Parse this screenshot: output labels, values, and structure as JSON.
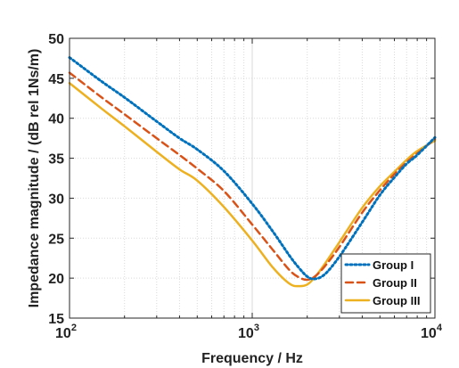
{
  "chart_data": {
    "type": "line",
    "xlabel": "Frequency / Hz",
    "ylabel": "Impedance magnitude / (dB rel 1Ns/m)",
    "xscale": "log",
    "xlim": [
      100,
      10000
    ],
    "ylim": [
      15,
      50
    ],
    "grid": true,
    "legend_position": "bottom-right",
    "x_ticks": [
      {
        "value": 100,
        "base": "10",
        "exp": "2"
      },
      {
        "value": 1000,
        "base": "10",
        "exp": "3"
      },
      {
        "value": 10000,
        "base": "10",
        "exp": "4"
      }
    ],
    "y_ticks": [
      {
        "value": 15,
        "label": "15"
      },
      {
        "value": 20,
        "label": "20"
      },
      {
        "value": 25,
        "label": "25"
      },
      {
        "value": 30,
        "label": "30"
      },
      {
        "value": 35,
        "label": "35"
      },
      {
        "value": 40,
        "label": "40"
      },
      {
        "value": 45,
        "label": "45"
      },
      {
        "value": 50,
        "label": "50"
      }
    ],
    "x": [
      100,
      150,
      200,
      300,
      400,
      500,
      700,
      1000,
      1300,
      1600,
      1800,
      2000,
      2200,
      2500,
      3000,
      4000,
      5000,
      6000,
      7000,
      8000,
      10000
    ],
    "series": [
      {
        "name": "Group I",
        "color": "#0072BD",
        "style": "dotted",
        "values": [
          47.6,
          44.6,
          42.6,
          39.6,
          37.5,
          36.1,
          33.4,
          29.3,
          25.8,
          22.8,
          21.3,
          20.2,
          19.9,
          20.5,
          22.7,
          27.0,
          30.4,
          32.6,
          34.3,
          35.4,
          37.6
        ]
      },
      {
        "name": "Group II",
        "color": "#D95319",
        "style": "dashed",
        "values": [
          45.7,
          42.6,
          40.5,
          37.5,
          35.4,
          33.7,
          30.9,
          26.7,
          23.5,
          21.0,
          20.1,
          19.8,
          20.2,
          21.5,
          23.9,
          28.2,
          31.0,
          33.0,
          34.5,
          35.6,
          37.4
        ]
      },
      {
        "name": "Group III",
        "color": "#EDB120",
        "style": "solid",
        "values": [
          44.4,
          41.2,
          39.0,
          35.8,
          33.6,
          32.2,
          28.9,
          24.7,
          21.3,
          19.3,
          19.0,
          19.2,
          20.1,
          21.8,
          24.5,
          28.8,
          31.5,
          33.3,
          34.8,
          35.9,
          37.2
        ]
      }
    ]
  }
}
